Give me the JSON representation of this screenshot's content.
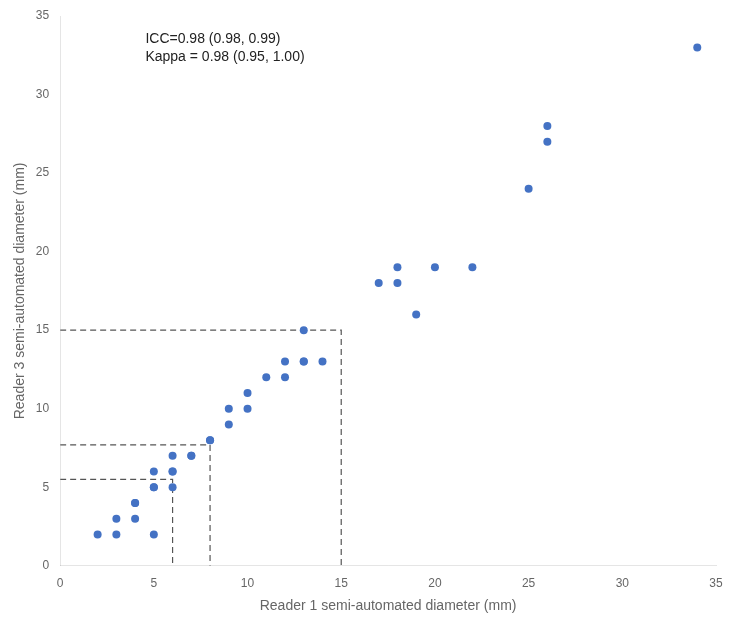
{
  "chart_data": {
    "type": "scatter",
    "xlabel": "Reader 1 semi-automated diameter (mm)",
    "ylabel": "Reader 3 semi-automated diameter (mm)",
    "xlim": [
      0,
      35
    ],
    "ylim": [
      0,
      35
    ],
    "xticks": [
      0,
      5,
      10,
      15,
      20,
      25,
      30,
      35
    ],
    "yticks": [
      0,
      5,
      10,
      15,
      20,
      25,
      30,
      35
    ],
    "grid": false,
    "annotation": [
      "ICC=0.98 (0.98, 0.99)",
      "Kappa = 0.98 (0.95, 1.00)"
    ],
    "series": [
      {
        "type": "scatter",
        "color": "#4472C4",
        "x": [
          2,
          3,
          3,
          4,
          4,
          4,
          5,
          5,
          5,
          5,
          6,
          6,
          6,
          6,
          7,
          7,
          8,
          8,
          9,
          9,
          10,
          10,
          11,
          12,
          12,
          13,
          13,
          13,
          14,
          17,
          18,
          18,
          19,
          20,
          22,
          25,
          26,
          26,
          34
        ],
        "values": [
          2,
          2,
          3,
          3,
          4,
          4,
          2,
          5,
          5,
          6,
          5,
          6,
          6,
          7,
          7,
          7,
          8,
          8,
          9,
          10,
          10,
          11,
          12,
          12,
          13,
          13,
          13,
          15,
          13,
          18,
          18,
          19,
          16,
          19,
          19,
          24,
          27,
          28,
          33
        ]
      },
      {
        "type": "line",
        "line_style": "dashed",
        "color": "#555555",
        "x": [
          0,
          6,
          6
        ],
        "values": [
          5.5,
          5.5,
          0
        ]
      },
      {
        "type": "line",
        "line_style": "dashed",
        "color": "#555555",
        "x": [
          0,
          8,
          8
        ],
        "values": [
          7.7,
          7.7,
          0
        ]
      },
      {
        "type": "line",
        "line_style": "dashed",
        "color": "#555555",
        "x": [
          0,
          15,
          15
        ],
        "values": [
          15,
          15,
          0
        ]
      }
    ]
  }
}
